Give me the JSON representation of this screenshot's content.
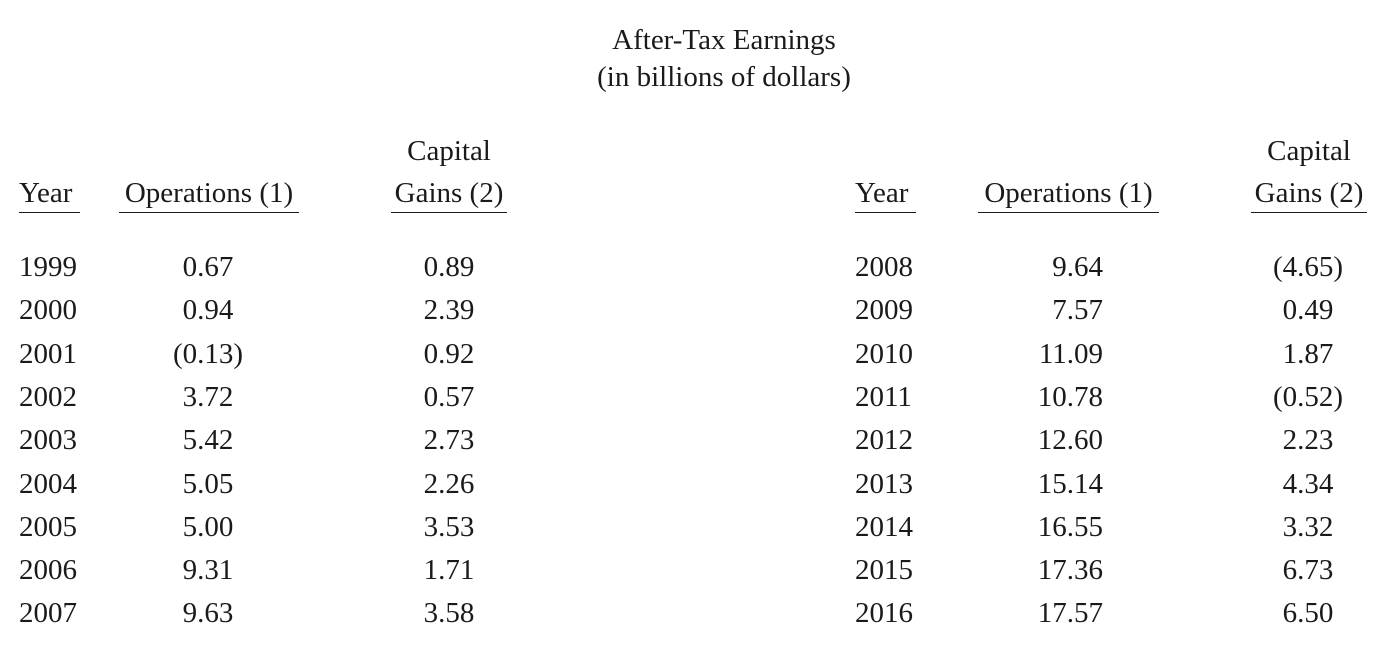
{
  "title": {
    "line1": "After-Tax Earnings",
    "line2": "(in billions of dollars)"
  },
  "headers": {
    "year": "Year",
    "operations": "Operations (1)",
    "capital_top": "Capital",
    "capital_bottom": "Gains (2)"
  },
  "left_table": [
    {
      "year": "1999",
      "operations": "0.67",
      "capital_gains": "0.89"
    },
    {
      "year": "2000",
      "operations": "0.94",
      "capital_gains": "2.39"
    },
    {
      "year": "2001",
      "operations": "(0.13)",
      "capital_gains": "0.92"
    },
    {
      "year": "2002",
      "operations": "3.72",
      "capital_gains": "0.57"
    },
    {
      "year": "2003",
      "operations": "5.42",
      "capital_gains": "2.73"
    },
    {
      "year": "2004",
      "operations": "5.05",
      "capital_gains": "2.26"
    },
    {
      "year": "2005",
      "operations": "5.00",
      "capital_gains": "3.53"
    },
    {
      "year": "2006",
      "operations": "9.31",
      "capital_gains": "1.71"
    },
    {
      "year": "2007",
      "operations": "9.63",
      "capital_gains": "3.58"
    }
  ],
  "right_table": [
    {
      "year": "2008",
      "operations": "9.64",
      "capital_gains": "(4.65)"
    },
    {
      "year": "2009",
      "operations": "7.57",
      "capital_gains": "0.49"
    },
    {
      "year": "2010",
      "operations": "11.09",
      "capital_gains": "1.87"
    },
    {
      "year": "2011",
      "operations": "10.78",
      "capital_gains": "(0.52)"
    },
    {
      "year": "2012",
      "operations": "12.60",
      "capital_gains": "2.23"
    },
    {
      "year": "2013",
      "operations": "15.14",
      "capital_gains": "4.34"
    },
    {
      "year": "2014",
      "operations": "16.55",
      "capital_gains": "3.32"
    },
    {
      "year": "2015",
      "operations": "17.36",
      "capital_gains": "6.73"
    },
    {
      "year": "2016",
      "operations": "17.57",
      "capital_gains": "6.50"
    }
  ]
}
